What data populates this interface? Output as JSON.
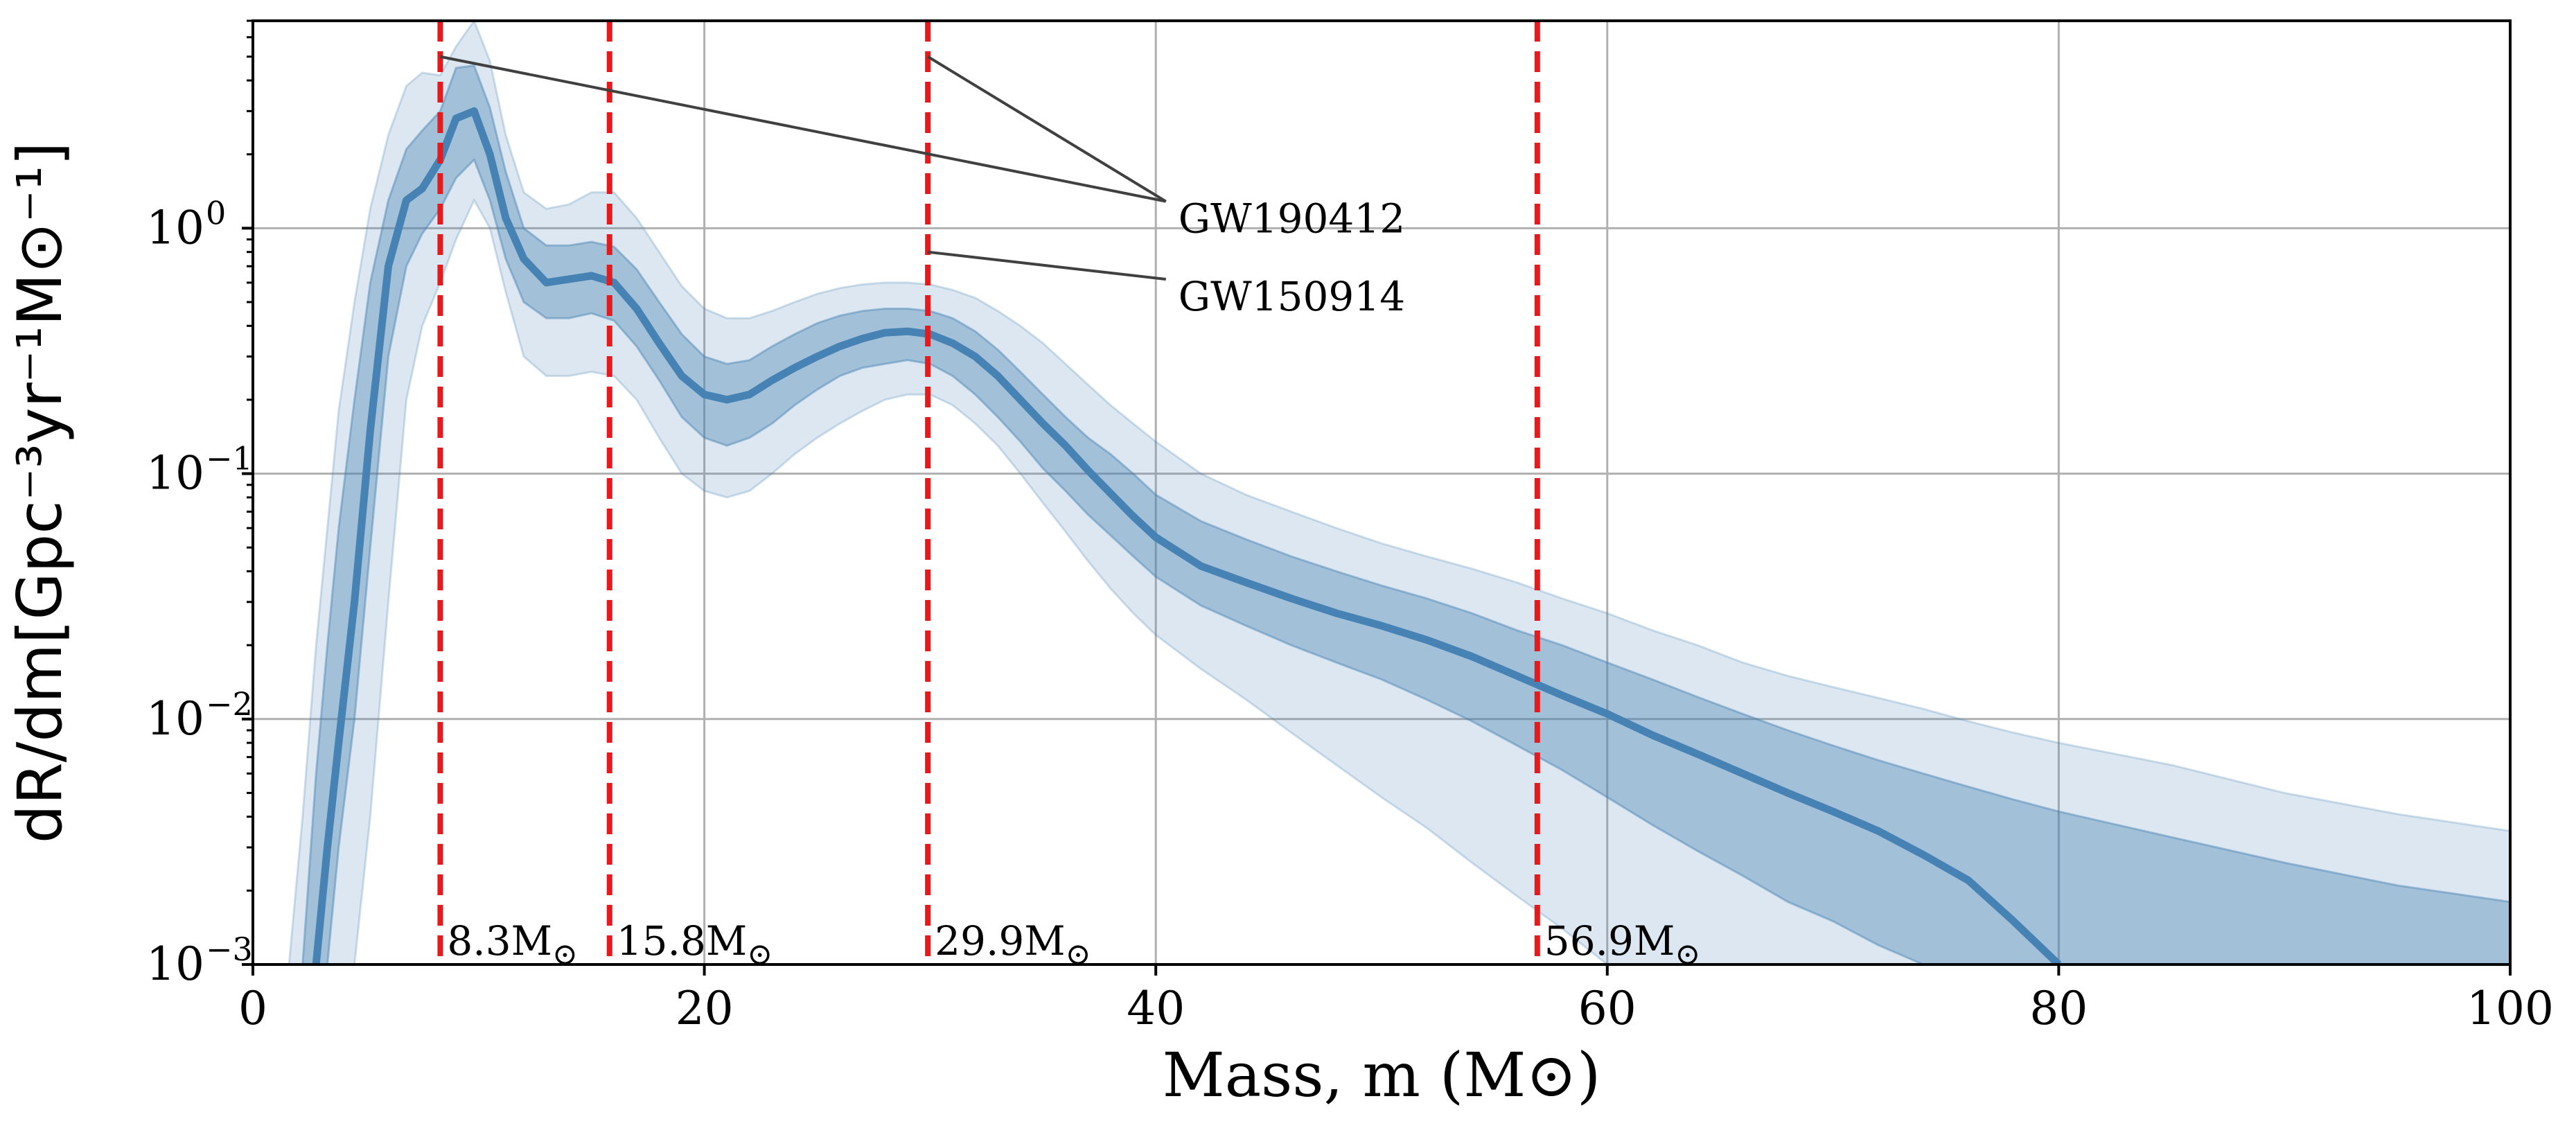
{
  "chart_data": {
    "type": "line",
    "title": "",
    "xlabel": "Mass, m (M⊙)",
    "ylabel": "dR/dm[Gpc⁻³yr⁻¹M⊙⁻¹]",
    "xlim": [
      0,
      100
    ],
    "ylim": [
      0.001,
      7
    ],
    "yscale": "log",
    "grid": true,
    "x_ticks": [
      0,
      20,
      40,
      60,
      80,
      100
    ],
    "x_tick_labels": [
      "0",
      "20",
      "40",
      "60",
      "80",
      "100"
    ],
    "y_ticks": [
      0.001,
      0.01,
      0.1,
      1
    ],
    "y_tick_labels": [
      {
        "base": "10",
        "exp": "−3"
      },
      {
        "base": "10",
        "exp": "−2"
      },
      {
        "base": "10",
        "exp": "−1"
      },
      {
        "base": "10",
        "exp": "0"
      }
    ],
    "colors": {
      "median": "#4682b4",
      "band_inner": "#4682b4",
      "band_outer": "#4682b4",
      "vlines": "#e41a1c",
      "grid": "#b0b0b0",
      "annotation": "#404040"
    },
    "series": [
      {
        "kind": "median",
        "x": [
          2.8,
          3.3,
          3.8,
          4.5,
          5.2,
          6.0,
          6.8,
          7.5,
          8.3,
          9.0,
          9.8,
          10.5,
          11.2,
          12.0,
          13.0,
          14.0,
          15.0,
          16.0,
          17.0,
          18.0,
          19.0,
          20.0,
          21.0,
          22.0,
          23.0,
          24.0,
          25.0,
          26.0,
          27.0,
          28.0,
          29.0,
          30.0,
          31.0,
          32.0,
          33.0,
          34.0,
          35.0,
          36.0,
          37.0,
          38.0,
          39.0,
          40.0,
          42.0,
          44.0,
          46.0,
          48.0,
          50.0,
          52.0,
          54.0,
          56.0,
          58.0,
          60.0,
          62.0,
          64.0,
          66.0,
          68.0,
          70.0,
          72.0,
          74.0,
          76.0,
          78.0,
          80.0
        ],
        "y": [
          0.001,
          0.003,
          0.008,
          0.03,
          0.15,
          0.7,
          1.3,
          1.45,
          1.9,
          2.8,
          3.0,
          2.0,
          1.1,
          0.75,
          0.6,
          0.62,
          0.64,
          0.6,
          0.47,
          0.34,
          0.25,
          0.21,
          0.2,
          0.21,
          0.24,
          0.27,
          0.3,
          0.33,
          0.355,
          0.375,
          0.38,
          0.37,
          0.34,
          0.3,
          0.25,
          0.2,
          0.16,
          0.13,
          0.103,
          0.083,
          0.067,
          0.055,
          0.042,
          0.036,
          0.031,
          0.027,
          0.024,
          0.021,
          0.018,
          0.015,
          0.0125,
          0.0105,
          0.0086,
          0.0072,
          0.006,
          0.005,
          0.0042,
          0.0035,
          0.0028,
          0.0022,
          0.0015,
          0.001
        ]
      },
      {
        "kind": "band_inner",
        "x": [
          2.2,
          2.8,
          3.3,
          3.8,
          4.5,
          5.2,
          6.0,
          6.8,
          7.5,
          8.3,
          9.0,
          9.8,
          10.5,
          11.2,
          12.0,
          13.0,
          14.0,
          15.0,
          16.0,
          17.0,
          18.0,
          19.0,
          20.0,
          21.0,
          22.0,
          23.0,
          24.0,
          25.0,
          26.0,
          27.0,
          28.0,
          29.0,
          30.0,
          31.0,
          32.0,
          33.0,
          34.0,
          35.0,
          36.0,
          37.0,
          38.0,
          39.0,
          40.0,
          42.0,
          44.0,
          46.0,
          48.0,
          50.0,
          52.0,
          54.0,
          56.0,
          58.0,
          60.0,
          62.0,
          64.0,
          66.0,
          68.0,
          70.0,
          72.0,
          74.0,
          76.0,
          78.0,
          80.0,
          85.0,
          90.0,
          95.0,
          100.0
        ],
        "upper": [
          0.001,
          0.006,
          0.02,
          0.06,
          0.2,
          0.6,
          1.3,
          2.1,
          2.5,
          3.0,
          4.5,
          4.6,
          3.1,
          1.7,
          1.0,
          0.85,
          0.85,
          0.88,
          0.84,
          0.68,
          0.5,
          0.37,
          0.3,
          0.28,
          0.29,
          0.33,
          0.37,
          0.41,
          0.44,
          0.46,
          0.47,
          0.47,
          0.46,
          0.43,
          0.38,
          0.32,
          0.26,
          0.21,
          0.17,
          0.14,
          0.12,
          0.1,
          0.082,
          0.064,
          0.054,
          0.046,
          0.04,
          0.035,
          0.031,
          0.027,
          0.023,
          0.02,
          0.017,
          0.0145,
          0.0123,
          0.0105,
          0.009,
          0.0078,
          0.0068,
          0.006,
          0.0053,
          0.0047,
          0.0042,
          0.0033,
          0.0026,
          0.0021,
          0.0018
        ],
        "lower": [
          0.001,
          0.001,
          0.001,
          0.003,
          0.01,
          0.05,
          0.3,
          0.7,
          0.95,
          1.2,
          1.6,
          1.9,
          1.3,
          0.75,
          0.5,
          0.43,
          0.43,
          0.45,
          0.42,
          0.33,
          0.24,
          0.17,
          0.14,
          0.13,
          0.14,
          0.16,
          0.19,
          0.22,
          0.25,
          0.27,
          0.28,
          0.29,
          0.28,
          0.25,
          0.21,
          0.17,
          0.135,
          0.105,
          0.085,
          0.068,
          0.056,
          0.046,
          0.038,
          0.029,
          0.024,
          0.02,
          0.017,
          0.0145,
          0.012,
          0.0098,
          0.0078,
          0.0062,
          0.0048,
          0.0037,
          0.0029,
          0.0023,
          0.0018,
          0.0015,
          0.0012,
          0.001,
          0.001,
          0.001,
          0.001,
          0.001,
          0.001,
          0.001,
          0.001
        ]
      },
      {
        "kind": "band_outer",
        "x": [
          1.6,
          2.2,
          2.8,
          3.3,
          3.8,
          4.5,
          5.2,
          6.0,
          6.8,
          7.5,
          8.3,
          9.0,
          9.8,
          10.5,
          11.2,
          12.0,
          13.0,
          14.0,
          15.0,
          16.0,
          17.0,
          18.0,
          19.0,
          20.0,
          21.0,
          22.0,
          23.0,
          24.0,
          25.0,
          26.0,
          27.0,
          28.0,
          29.0,
          30.0,
          31.0,
          32.0,
          33.0,
          34.0,
          35.0,
          36.0,
          37.0,
          38.0,
          39.0,
          40.0,
          42.0,
          44.0,
          46.0,
          48.0,
          50.0,
          52.0,
          54.0,
          56.0,
          58.0,
          60.0,
          62.0,
          64.0,
          66.0,
          68.0,
          70.0,
          72.0,
          74.0,
          76.0,
          78.0,
          80.0,
          85.0,
          90.0,
          95.0,
          100.0
        ],
        "upper": [
          0.001,
          0.004,
          0.02,
          0.06,
          0.18,
          0.5,
          1.2,
          2.4,
          3.8,
          4.3,
          4.2,
          5.5,
          7.0,
          4.8,
          2.4,
          1.4,
          1.2,
          1.25,
          1.4,
          1.4,
          1.1,
          0.8,
          0.58,
          0.47,
          0.43,
          0.43,
          0.46,
          0.5,
          0.54,
          0.57,
          0.59,
          0.6,
          0.6,
          0.59,
          0.56,
          0.52,
          0.46,
          0.4,
          0.34,
          0.28,
          0.23,
          0.19,
          0.16,
          0.135,
          0.1,
          0.082,
          0.07,
          0.06,
          0.052,
          0.046,
          0.041,
          0.036,
          0.031,
          0.027,
          0.023,
          0.02,
          0.017,
          0.015,
          0.0135,
          0.0122,
          0.011,
          0.0098,
          0.0088,
          0.008,
          0.0065,
          0.005,
          0.0041,
          0.0035
        ],
        "lower": [
          0.001,
          0.001,
          0.001,
          0.001,
          0.001,
          0.001,
          0.004,
          0.03,
          0.2,
          0.4,
          0.6,
          0.9,
          1.3,
          1.0,
          0.55,
          0.3,
          0.25,
          0.25,
          0.26,
          0.25,
          0.2,
          0.14,
          0.1,
          0.085,
          0.08,
          0.085,
          0.1,
          0.12,
          0.14,
          0.16,
          0.18,
          0.2,
          0.21,
          0.21,
          0.19,
          0.16,
          0.13,
          0.1,
          0.076,
          0.058,
          0.044,
          0.034,
          0.027,
          0.022,
          0.016,
          0.012,
          0.0088,
          0.0065,
          0.0048,
          0.0036,
          0.0026,
          0.0019,
          0.0014,
          0.001,
          0.001,
          0.001,
          0.001,
          0.001,
          0.001,
          0.001,
          0.001,
          0.001,
          0.001,
          0.001,
          0.001,
          0.001,
          0.001,
          0.001
        ]
      }
    ],
    "vlines": [
      {
        "x": 8.3,
        "base": "8.3M",
        "sub": "⊙"
      },
      {
        "x": 15.8,
        "base": "15.8M",
        "sub": "⊙"
      },
      {
        "x": 29.9,
        "base": "29.9M",
        "sub": "⊙"
      },
      {
        "x": 56.9,
        "base": "56.9M",
        "sub": "⊙"
      }
    ],
    "annotations": [
      {
        "text": "GW190412",
        "label_at": [
          41.0,
          1.1
        ],
        "arrows_to": [
          [
            8.3,
            5.0
          ],
          [
            29.9,
            5.0
          ]
        ]
      },
      {
        "text": "GW150914",
        "label_at": [
          41.0,
          0.53
        ],
        "arrows_to": [
          [
            29.9,
            0.8
          ]
        ]
      }
    ]
  }
}
